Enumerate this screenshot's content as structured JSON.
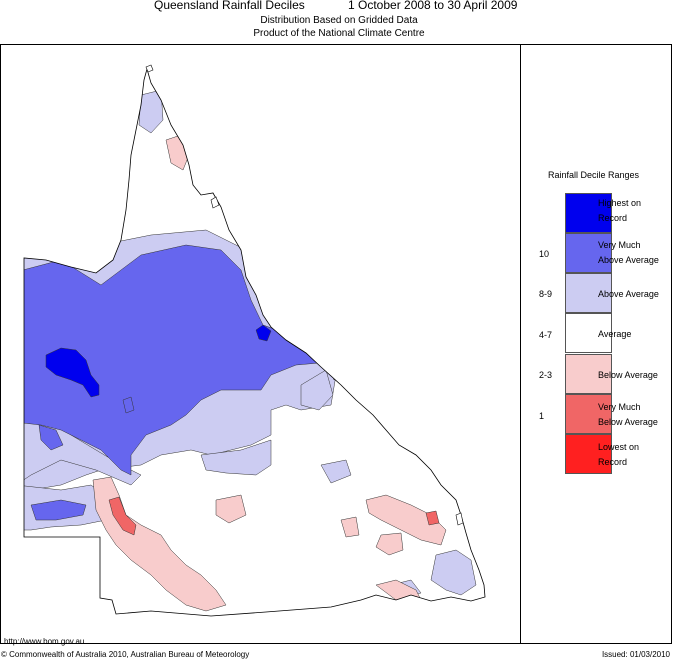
{
  "title": {
    "main": "Queensland Rainfall Deciles",
    "dates": "1 October 2008 to 30 April 2009",
    "subtitle1": "Distribution Based on Gridded Data",
    "subtitle2": "Product of the National Climate Centre"
  },
  "legend": {
    "title": "Rainfall Decile Ranges",
    "items": [
      {
        "range": "",
        "label1": "Highest on",
        "label2": "Record",
        "color": "#0000ee"
      },
      {
        "range": "10",
        "label1": "Very Much",
        "label2": "Above Average",
        "color": "#6666ee"
      },
      {
        "range": "8-9",
        "label1": "Above Average",
        "label2": "",
        "color": "#ccccf2"
      },
      {
        "range": "4-7",
        "label1": "Average",
        "label2": "",
        "color": "#ffffff"
      },
      {
        "range": "2-3",
        "label1": "Below Average",
        "label2": "",
        "color": "#f8cccc"
      },
      {
        "range": "1",
        "label1": "Very Much",
        "label2": "Below Average",
        "color": "#f06666"
      },
      {
        "range": "",
        "label1": "Lowest on",
        "label2": "Record",
        "color": "#ff2020"
      }
    ]
  },
  "footer": {
    "url": "http://www.bom.gov.au",
    "copyright": "© Commonwealth of Australia 2010, Australian Bureau of Meteorology",
    "issued": "Issued: 01/03/2010"
  }
}
